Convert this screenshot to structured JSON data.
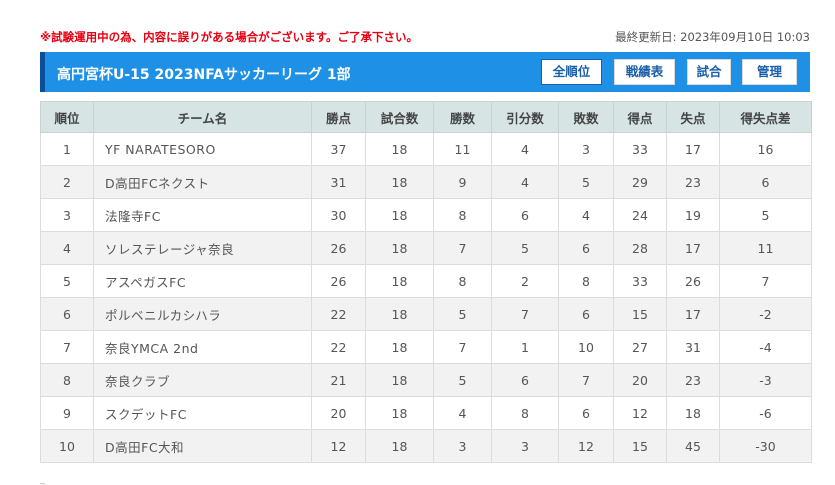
{
  "notice": "※試験運用中の為、内容に誤りがある場合がございます。ご了承下さい。",
  "updated": "最終更新日: 2023年09月10日 10:03",
  "header": {
    "title": "高円宮杯U-15 2023NFAサッカーリーグ 1部",
    "buttons": {
      "ranking": "全順位",
      "results": "戦績表",
      "matches": "試合",
      "admin": "管理"
    }
  },
  "table": {
    "columns": [
      "順位",
      "チーム名",
      "勝点",
      "試合数",
      "勝数",
      "引分数",
      "敗数",
      "得点",
      "失点",
      "得失点差"
    ],
    "rows": [
      [
        "1",
        "YF NARATESORO",
        "37",
        "18",
        "11",
        "4",
        "3",
        "33",
        "17",
        "16"
      ],
      [
        "2",
        "D高田FCネクスト",
        "31",
        "18",
        "9",
        "4",
        "5",
        "29",
        "23",
        "6"
      ],
      [
        "3",
        "法隆寺FC",
        "30",
        "18",
        "8",
        "6",
        "4",
        "24",
        "19",
        "5"
      ],
      [
        "4",
        "ソレステレージャ奈良",
        "26",
        "18",
        "7",
        "5",
        "6",
        "28",
        "17",
        "11"
      ],
      [
        "5",
        "アスペガスFC",
        "26",
        "18",
        "8",
        "2",
        "8",
        "33",
        "26",
        "7"
      ],
      [
        "6",
        "ポルベニルカシハラ",
        "22",
        "18",
        "5",
        "7",
        "6",
        "15",
        "17",
        "-2"
      ],
      [
        "7",
        "奈良YMCA 2nd",
        "22",
        "18",
        "7",
        "1",
        "10",
        "27",
        "31",
        "-4"
      ],
      [
        "8",
        "奈良クラブ",
        "21",
        "18",
        "5",
        "6",
        "7",
        "20",
        "23",
        "-3"
      ],
      [
        "9",
        "スクデットFC",
        "20",
        "18",
        "4",
        "8",
        "6",
        "12",
        "18",
        "-6"
      ],
      [
        "10",
        "D高田FC大和",
        "12",
        "18",
        "3",
        "3",
        "12",
        "15",
        "45",
        "-30"
      ]
    ]
  },
  "footer": "_"
}
